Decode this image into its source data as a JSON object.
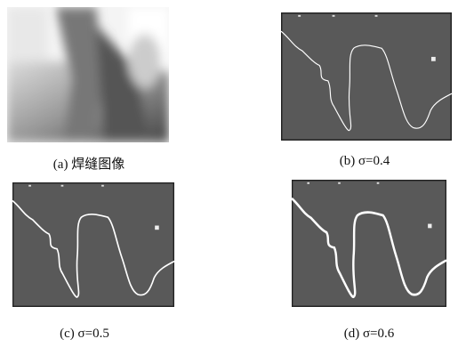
{
  "figure": {
    "panels": [
      {
        "caption": "(a) 焊缝图像"
      },
      {
        "caption": "(b) σ=0.4"
      },
      {
        "caption": "(c) σ=0.5"
      },
      {
        "caption": "(d) σ=0.6"
      }
    ]
  }
}
